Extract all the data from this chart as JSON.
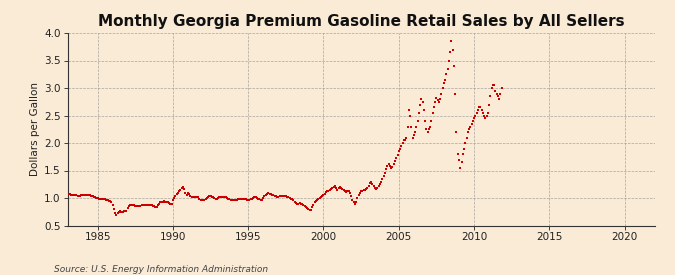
{
  "title": "Monthly Georgia Premium Gasoline Retail Sales by All Sellers",
  "ylabel": "Dollars per Gallon",
  "source": "Source: U.S. Energy Information Administration",
  "background_color": "#faebd7",
  "plot_bg_color": "#faebd7",
  "marker_color": "#cc0000",
  "marker": "s",
  "marker_size": 3,
  "xlim": [
    1983,
    2022
  ],
  "ylim": [
    0.5,
    4.0
  ],
  "yticks": [
    0.5,
    1.0,
    1.5,
    2.0,
    2.5,
    3.0,
    3.5,
    4.0
  ],
  "xticks": [
    1985,
    1990,
    1995,
    2000,
    2005,
    2010,
    2015,
    2020
  ],
  "title_fontsize": 11,
  "label_fontsize": 7.5,
  "tick_fontsize": 7.5,
  "source_fontsize": 6.5,
  "data": [
    [
      1983.0,
      1.07
    ],
    [
      1983.083,
      1.07
    ],
    [
      1983.167,
      1.07
    ],
    [
      1983.25,
      1.06
    ],
    [
      1983.333,
      1.06
    ],
    [
      1983.417,
      1.06
    ],
    [
      1983.5,
      1.05
    ],
    [
      1983.583,
      1.05
    ],
    [
      1983.667,
      1.04
    ],
    [
      1983.75,
      1.04
    ],
    [
      1983.833,
      1.04
    ],
    [
      1983.917,
      1.05
    ],
    [
      1984.0,
      1.06
    ],
    [
      1984.083,
      1.06
    ],
    [
      1984.167,
      1.06
    ],
    [
      1984.25,
      1.06
    ],
    [
      1984.333,
      1.06
    ],
    [
      1984.417,
      1.06
    ],
    [
      1984.5,
      1.05
    ],
    [
      1984.583,
      1.04
    ],
    [
      1984.667,
      1.03
    ],
    [
      1984.75,
      1.02
    ],
    [
      1984.833,
      1.01
    ],
    [
      1984.917,
      1.0
    ],
    [
      1985.0,
      1.0
    ],
    [
      1985.083,
      0.99
    ],
    [
      1985.167,
      0.99
    ],
    [
      1985.25,
      0.99
    ],
    [
      1985.333,
      0.99
    ],
    [
      1985.417,
      0.99
    ],
    [
      1985.5,
      0.98
    ],
    [
      1985.583,
      0.97
    ],
    [
      1985.667,
      0.96
    ],
    [
      1985.75,
      0.95
    ],
    [
      1985.833,
      0.94
    ],
    [
      1985.917,
      0.93
    ],
    [
      1986.0,
      0.88
    ],
    [
      1986.083,
      0.8
    ],
    [
      1986.167,
      0.72
    ],
    [
      1986.25,
      0.7
    ],
    [
      1986.333,
      0.72
    ],
    [
      1986.417,
      0.75
    ],
    [
      1986.5,
      0.76
    ],
    [
      1986.583,
      0.75
    ],
    [
      1986.667,
      0.75
    ],
    [
      1986.75,
      0.76
    ],
    [
      1986.833,
      0.76
    ],
    [
      1986.917,
      0.77
    ],
    [
      1987.0,
      0.82
    ],
    [
      1987.083,
      0.85
    ],
    [
      1987.167,
      0.88
    ],
    [
      1987.25,
      0.88
    ],
    [
      1987.333,
      0.87
    ],
    [
      1987.417,
      0.87
    ],
    [
      1987.5,
      0.86
    ],
    [
      1987.583,
      0.86
    ],
    [
      1987.667,
      0.85
    ],
    [
      1987.75,
      0.86
    ],
    [
      1987.833,
      0.86
    ],
    [
      1987.917,
      0.87
    ],
    [
      1988.0,
      0.87
    ],
    [
      1988.083,
      0.87
    ],
    [
      1988.167,
      0.87
    ],
    [
      1988.25,
      0.87
    ],
    [
      1988.333,
      0.87
    ],
    [
      1988.417,
      0.87
    ],
    [
      1988.5,
      0.87
    ],
    [
      1988.583,
      0.87
    ],
    [
      1988.667,
      0.86
    ],
    [
      1988.75,
      0.85
    ],
    [
      1988.833,
      0.84
    ],
    [
      1988.917,
      0.83
    ],
    [
      1989.0,
      0.88
    ],
    [
      1989.083,
      0.9
    ],
    [
      1989.167,
      0.93
    ],
    [
      1989.25,
      0.93
    ],
    [
      1989.333,
      0.93
    ],
    [
      1989.417,
      0.94
    ],
    [
      1989.5,
      0.93
    ],
    [
      1989.583,
      0.93
    ],
    [
      1989.667,
      0.92
    ],
    [
      1989.75,
      0.91
    ],
    [
      1989.833,
      0.9
    ],
    [
      1989.917,
      0.9
    ],
    [
      1990.0,
      0.97
    ],
    [
      1990.083,
      1.0
    ],
    [
      1990.167,
      1.04
    ],
    [
      1990.25,
      1.07
    ],
    [
      1990.333,
      1.1
    ],
    [
      1990.417,
      1.13
    ],
    [
      1990.5,
      1.15
    ],
    [
      1990.583,
      1.18
    ],
    [
      1990.667,
      1.2
    ],
    [
      1990.75,
      1.17
    ],
    [
      1990.833,
      1.1
    ],
    [
      1990.917,
      1.05
    ],
    [
      1991.0,
      1.1
    ],
    [
      1991.083,
      1.08
    ],
    [
      1991.167,
      1.04
    ],
    [
      1991.25,
      1.02
    ],
    [
      1991.333,
      1.01
    ],
    [
      1991.417,
      1.01
    ],
    [
      1991.5,
      1.02
    ],
    [
      1991.583,
      1.02
    ],
    [
      1991.667,
      1.01
    ],
    [
      1991.75,
      0.99
    ],
    [
      1991.833,
      0.97
    ],
    [
      1991.917,
      0.97
    ],
    [
      1992.0,
      0.96
    ],
    [
      1992.083,
      0.96
    ],
    [
      1992.167,
      0.98
    ],
    [
      1992.25,
      1.0
    ],
    [
      1992.333,
      1.02
    ],
    [
      1992.417,
      1.03
    ],
    [
      1992.5,
      1.03
    ],
    [
      1992.583,
      1.02
    ],
    [
      1992.667,
      1.01
    ],
    [
      1992.75,
      1.0
    ],
    [
      1992.833,
      0.99
    ],
    [
      1992.917,
      0.99
    ],
    [
      1993.0,
      1.0
    ],
    [
      1993.083,
      1.01
    ],
    [
      1993.167,
      1.01
    ],
    [
      1993.25,
      1.01
    ],
    [
      1993.333,
      1.01
    ],
    [
      1993.417,
      1.01
    ],
    [
      1993.5,
      1.01
    ],
    [
      1993.583,
      1.0
    ],
    [
      1993.667,
      0.99
    ],
    [
      1993.75,
      0.98
    ],
    [
      1993.833,
      0.97
    ],
    [
      1993.917,
      0.97
    ],
    [
      1994.0,
      0.96
    ],
    [
      1994.083,
      0.96
    ],
    [
      1994.167,
      0.96
    ],
    [
      1994.25,
      0.97
    ],
    [
      1994.333,
      0.98
    ],
    [
      1994.417,
      0.99
    ],
    [
      1994.5,
      0.99
    ],
    [
      1994.583,
      0.99
    ],
    [
      1994.667,
      0.99
    ],
    [
      1994.75,
      0.99
    ],
    [
      1994.833,
      0.98
    ],
    [
      1994.917,
      0.97
    ],
    [
      1995.0,
      0.96
    ],
    [
      1995.083,
      0.97
    ],
    [
      1995.167,
      0.98
    ],
    [
      1995.25,
      0.99
    ],
    [
      1995.333,
      1.0
    ],
    [
      1995.417,
      1.01
    ],
    [
      1995.5,
      1.01
    ],
    [
      1995.583,
      1.0
    ],
    [
      1995.667,
      0.99
    ],
    [
      1995.75,
      0.98
    ],
    [
      1995.833,
      0.97
    ],
    [
      1995.917,
      0.97
    ],
    [
      1996.0,
      1.0
    ],
    [
      1996.083,
      1.03
    ],
    [
      1996.167,
      1.06
    ],
    [
      1996.25,
      1.08
    ],
    [
      1996.333,
      1.09
    ],
    [
      1996.417,
      1.08
    ],
    [
      1996.5,
      1.07
    ],
    [
      1996.583,
      1.06
    ],
    [
      1996.667,
      1.05
    ],
    [
      1996.75,
      1.04
    ],
    [
      1996.833,
      1.03
    ],
    [
      1996.917,
      1.02
    ],
    [
      1997.0,
      1.02
    ],
    [
      1997.083,
      1.03
    ],
    [
      1997.167,
      1.04
    ],
    [
      1997.25,
      1.04
    ],
    [
      1997.333,
      1.04
    ],
    [
      1997.417,
      1.04
    ],
    [
      1997.5,
      1.03
    ],
    [
      1997.583,
      1.02
    ],
    [
      1997.667,
      1.01
    ],
    [
      1997.75,
      1.0
    ],
    [
      1997.833,
      0.99
    ],
    [
      1997.917,
      0.98
    ],
    [
      1998.0,
      0.96
    ],
    [
      1998.083,
      0.93
    ],
    [
      1998.167,
      0.91
    ],
    [
      1998.25,
      0.9
    ],
    [
      1998.333,
      0.9
    ],
    [
      1998.417,
      0.91
    ],
    [
      1998.5,
      0.9
    ],
    [
      1998.583,
      0.89
    ],
    [
      1998.667,
      0.88
    ],
    [
      1998.75,
      0.86
    ],
    [
      1998.833,
      0.84
    ],
    [
      1998.917,
      0.82
    ],
    [
      1999.0,
      0.8
    ],
    [
      1999.083,
      0.78
    ],
    [
      1999.167,
      0.78
    ],
    [
      1999.25,
      0.83
    ],
    [
      1999.333,
      0.88
    ],
    [
      1999.417,
      0.92
    ],
    [
      1999.5,
      0.95
    ],
    [
      1999.583,
      0.97
    ],
    [
      1999.667,
      0.99
    ],
    [
      1999.75,
      1.0
    ],
    [
      1999.833,
      1.02
    ],
    [
      1999.917,
      1.03
    ],
    [
      2000.0,
      1.05
    ],
    [
      2000.083,
      1.08
    ],
    [
      2000.167,
      1.11
    ],
    [
      2000.25,
      1.12
    ],
    [
      2000.333,
      1.13
    ],
    [
      2000.417,
      1.15
    ],
    [
      2000.5,
      1.17
    ],
    [
      2000.583,
      1.19
    ],
    [
      2000.667,
      1.2
    ],
    [
      2000.75,
      1.21
    ],
    [
      2000.833,
      1.18
    ],
    [
      2000.917,
      1.15
    ],
    [
      2001.0,
      1.18
    ],
    [
      2001.083,
      1.2
    ],
    [
      2001.167,
      1.18
    ],
    [
      2001.25,
      1.16
    ],
    [
      2001.333,
      1.14
    ],
    [
      2001.417,
      1.12
    ],
    [
      2001.5,
      1.11
    ],
    [
      2001.583,
      1.12
    ],
    [
      2001.667,
      1.13
    ],
    [
      2001.75,
      1.1
    ],
    [
      2001.833,
      1.03
    ],
    [
      2001.917,
      0.96
    ],
    [
      2002.0,
      0.92
    ],
    [
      2002.083,
      0.9
    ],
    [
      2002.167,
      0.93
    ],
    [
      2002.25,
      1.0
    ],
    [
      2002.333,
      1.06
    ],
    [
      2002.417,
      1.1
    ],
    [
      2002.5,
      1.12
    ],
    [
      2002.583,
      1.13
    ],
    [
      2002.667,
      1.14
    ],
    [
      2002.75,
      1.15
    ],
    [
      2002.833,
      1.17
    ],
    [
      2002.917,
      1.18
    ],
    [
      2003.0,
      1.22
    ],
    [
      2003.083,
      1.28
    ],
    [
      2003.167,
      1.3
    ],
    [
      2003.25,
      1.26
    ],
    [
      2003.333,
      1.22
    ],
    [
      2003.417,
      1.18
    ],
    [
      2003.5,
      1.16
    ],
    [
      2003.583,
      1.18
    ],
    [
      2003.667,
      1.22
    ],
    [
      2003.75,
      1.26
    ],
    [
      2003.833,
      1.3
    ],
    [
      2003.917,
      1.35
    ],
    [
      2004.0,
      1.4
    ],
    [
      2004.083,
      1.45
    ],
    [
      2004.167,
      1.52
    ],
    [
      2004.25,
      1.58
    ],
    [
      2004.333,
      1.62
    ],
    [
      2004.417,
      1.58
    ],
    [
      2004.5,
      1.55
    ],
    [
      2004.583,
      1.57
    ],
    [
      2004.667,
      1.62
    ],
    [
      2004.75,
      1.68
    ],
    [
      2004.833,
      1.72
    ],
    [
      2004.917,
      1.78
    ],
    [
      2005.0,
      1.85
    ],
    [
      2005.083,
      1.9
    ],
    [
      2005.167,
      1.95
    ],
    [
      2005.25,
      2.0
    ],
    [
      2005.333,
      2.05
    ],
    [
      2005.417,
      2.05
    ],
    [
      2005.5,
      2.1
    ],
    [
      2005.583,
      2.3
    ],
    [
      2005.667,
      2.6
    ],
    [
      2005.75,
      2.5
    ],
    [
      2005.833,
      2.3
    ],
    [
      2005.917,
      2.1
    ],
    [
      2006.0,
      2.15
    ],
    [
      2006.083,
      2.2
    ],
    [
      2006.167,
      2.3
    ],
    [
      2006.25,
      2.4
    ],
    [
      2006.333,
      2.55
    ],
    [
      2006.417,
      2.7
    ],
    [
      2006.5,
      2.8
    ],
    [
      2006.583,
      2.75
    ],
    [
      2006.667,
      2.6
    ],
    [
      2006.75,
      2.4
    ],
    [
      2006.833,
      2.25
    ],
    [
      2006.917,
      2.2
    ],
    [
      2007.0,
      2.25
    ],
    [
      2007.083,
      2.3
    ],
    [
      2007.167,
      2.4
    ],
    [
      2007.25,
      2.55
    ],
    [
      2007.333,
      2.65
    ],
    [
      2007.417,
      2.75
    ],
    [
      2007.5,
      2.82
    ],
    [
      2007.583,
      2.78
    ],
    [
      2007.667,
      2.75
    ],
    [
      2007.75,
      2.8
    ],
    [
      2007.833,
      2.9
    ],
    [
      2007.917,
      3.0
    ],
    [
      2008.0,
      3.1
    ],
    [
      2008.083,
      3.15
    ],
    [
      2008.167,
      3.25
    ],
    [
      2008.25,
      3.35
    ],
    [
      2008.333,
      3.5
    ],
    [
      2008.417,
      3.65
    ],
    [
      2008.5,
      3.85
    ],
    [
      2008.583,
      3.7
    ],
    [
      2008.667,
      3.4
    ],
    [
      2008.75,
      2.9
    ],
    [
      2008.833,
      2.2
    ],
    [
      2008.917,
      1.8
    ],
    [
      2009.0,
      1.7
    ],
    [
      2009.083,
      1.55
    ],
    [
      2009.167,
      1.65
    ],
    [
      2009.25,
      1.8
    ],
    [
      2009.333,
      1.9
    ],
    [
      2009.417,
      2.0
    ],
    [
      2009.5,
      2.1
    ],
    [
      2009.583,
      2.2
    ],
    [
      2009.667,
      2.25
    ],
    [
      2009.75,
      2.3
    ],
    [
      2009.833,
      2.35
    ],
    [
      2009.917,
      2.4
    ],
    [
      2010.0,
      2.45
    ],
    [
      2010.083,
      2.5
    ],
    [
      2010.167,
      2.55
    ],
    [
      2010.25,
      2.6
    ],
    [
      2010.333,
      2.65
    ],
    [
      2010.417,
      2.65
    ],
    [
      2010.5,
      2.6
    ],
    [
      2010.583,
      2.55
    ],
    [
      2010.667,
      2.5
    ],
    [
      2010.75,
      2.45
    ],
    [
      2010.833,
      2.5
    ],
    [
      2010.917,
      2.55
    ],
    [
      2011.0,
      2.7
    ],
    [
      2011.083,
      2.85
    ],
    [
      2011.167,
      3.0
    ],
    [
      2011.25,
      3.05
    ],
    [
      2011.333,
      3.05
    ],
    [
      2011.417,
      2.95
    ],
    [
      2011.5,
      2.9
    ],
    [
      2011.583,
      2.85
    ],
    [
      2011.667,
      2.8
    ],
    [
      2011.75,
      2.9
    ],
    [
      2011.833,
      3.0
    ]
  ]
}
